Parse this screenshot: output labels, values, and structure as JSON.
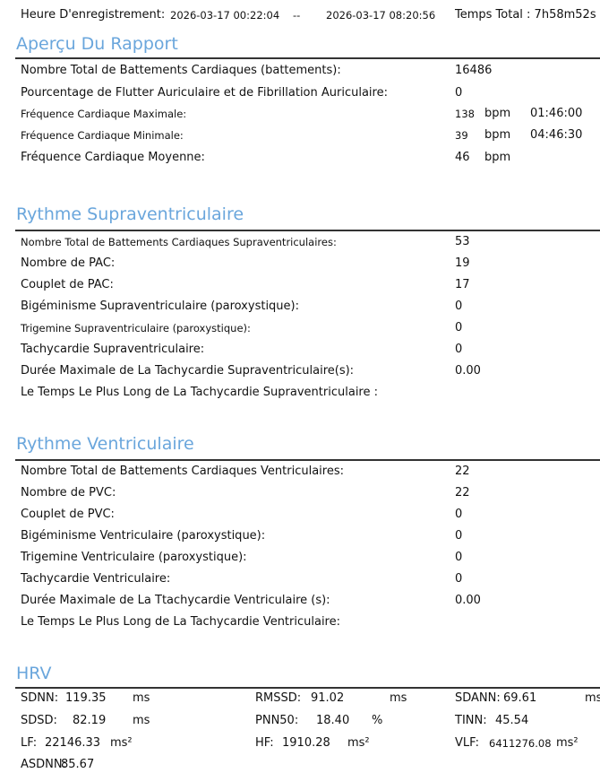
{
  "header": {
    "recording_label": "Heure D'enregistrement:",
    "start": "2026-03-17 00:22:04",
    "sep": "--",
    "end": "2026-03-17 08:20:56",
    "total": "Temps Total : 7h58m52s"
  },
  "overview": {
    "title": "Aperçu Du Rapport",
    "rows": [
      {
        "label": "Nombre Total de Battements Cardiaques (battements):",
        "value": "16486"
      },
      {
        "label": "Pourcentage de Flutter Auriculaire et de Fibrillation Auriculaire:",
        "value": "0"
      },
      {
        "label": "Fréquence Cardiaque Maximale:",
        "value": "138",
        "unit": "bpm",
        "time": "01:46:00"
      },
      {
        "label": "Fréquence Cardiaque Minimale:",
        "value": "39",
        "unit": "bpm",
        "time": "04:46:30"
      },
      {
        "label": "Fréquence Cardiaque Moyenne:",
        "value": "46",
        "unit": "bpm"
      }
    ]
  },
  "supra": {
    "title": "Rythme Supraventriculaire",
    "rows": [
      {
        "label": "Nombre Total de Battements Cardiaques Supraventriculaires:",
        "value": "53"
      },
      {
        "label": "Nombre de PAC:",
        "value": "19"
      },
      {
        "label": "Couplet de PAC:",
        "value": "17"
      },
      {
        "label": "Bigéminisme Supraventriculaire (paroxystique):",
        "value": "0"
      },
      {
        "label": "Trigemine Supraventriculaire (paroxystique):",
        "value": "0"
      },
      {
        "label": "Tachycardie Supraventriculaire:",
        "value": "0"
      },
      {
        "label": "Durée Maximale de La Tachycardie Supraventriculaire(s):",
        "value": "0.00"
      },
      {
        "label": "Le Temps Le Plus Long de La Tachycardie Supraventriculaire :",
        "value": ""
      }
    ]
  },
  "ventri": {
    "title": "Rythme Ventriculaire",
    "rows": [
      {
        "label": "Nombre Total de Battements Cardiaques Ventriculaires:",
        "value": "22"
      },
      {
        "label": "Nombre de PVC:",
        "value": "22"
      },
      {
        "label": "Couplet de PVC:",
        "value": "0"
      },
      {
        "label": "Bigéminisme Ventriculaire (paroxystique):",
        "value": "0"
      },
      {
        "label": "Trigemine Ventriculaire (paroxystique):",
        "value": "0"
      },
      {
        "label": "Tachycardie Ventriculaire:",
        "value": "0"
      },
      {
        "label": "Durée Maximale de La Ttachycardie Ventriculaire (s):",
        "value": "0.00"
      },
      {
        "label": "Le Temps Le Plus Long de La Tachycardie Ventriculaire:",
        "value": ""
      }
    ]
  },
  "hrv": {
    "title": "HRV",
    "items": [
      {
        "label": "SDNN:",
        "value": "119.35",
        "unit": "ms"
      },
      {
        "label": "RMSSD:",
        "value": "91.02",
        "unit": "ms"
      },
      {
        "label": "SDANN:",
        "value": "69.61",
        "unit": "ms"
      },
      {
        "label": "SDSD:",
        "value": "82.19",
        "unit": "ms"
      },
      {
        "label": "PNN50:",
        "value": "18.40",
        "unit": "%"
      },
      {
        "label": "TINN:",
        "value": "45.54",
        "unit": ""
      },
      {
        "label": "LF:",
        "value": "22146.33",
        "unit": "ms²"
      },
      {
        "label": "HF:",
        "value": "1910.28",
        "unit": "ms²"
      },
      {
        "label": "VLF:",
        "value": "6411276.08",
        "unit": "ms²"
      },
      {
        "label": "ASDNN:",
        "value": "85.67",
        "unit": ""
      }
    ]
  }
}
